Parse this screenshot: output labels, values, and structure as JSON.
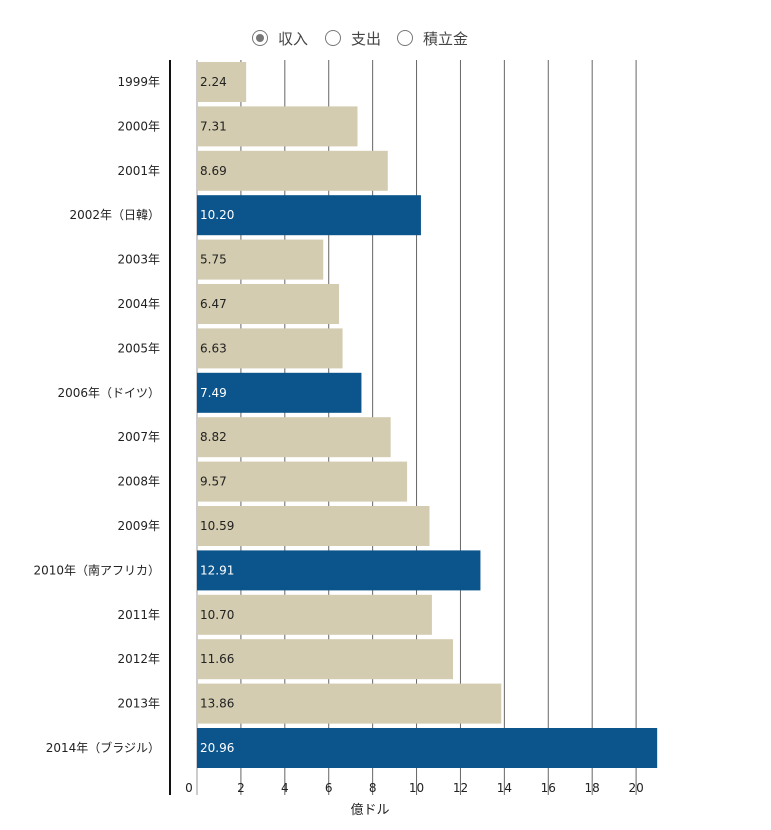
{
  "legend": {
    "options": [
      {
        "label": "収入",
        "selected": true
      },
      {
        "label": "支出",
        "selected": false
      },
      {
        "label": "積立金",
        "selected": false
      }
    ]
  },
  "chart_data": {
    "type": "bar",
    "orientation": "horizontal",
    "title": "",
    "xlabel": "億ドル",
    "ylabel": "",
    "xlim": [
      0,
      22
    ],
    "xticks": [
      0,
      2,
      4,
      6,
      8,
      10,
      12,
      14,
      16,
      18,
      20
    ],
    "grid": true,
    "colors": {
      "default": "#d3ccb0",
      "highlight": "#0b548c",
      "highlight_text": "#ffffff",
      "default_text": "#222222"
    },
    "categories": [
      "1999年",
      "2000年",
      "2001年",
      "2002年（日韓）",
      "2003年",
      "2004年",
      "2005年",
      "2006年（ドイツ）",
      "2007年",
      "2008年",
      "2009年",
      "2010年（南アフリカ）",
      "2011年",
      "2012年",
      "2013年",
      "2014年（ブラジル）"
    ],
    "values": [
      2.24,
      7.31,
      8.69,
      10.2,
      5.75,
      6.47,
      6.63,
      7.49,
      8.82,
      9.57,
      10.59,
      12.91,
      10.7,
      11.66,
      13.86,
      20.96
    ],
    "value_labels": [
      "2.24",
      "7.31",
      "8.69",
      "10.20",
      "5.75",
      "6.47",
      "6.63",
      "7.49",
      "8.82",
      "9.57",
      "10.59",
      "12.91",
      "10.70",
      "11.66",
      "13.86",
      "20.96"
    ],
    "highlighted": [
      false,
      false,
      false,
      true,
      false,
      false,
      false,
      true,
      false,
      false,
      false,
      true,
      false,
      false,
      false,
      true
    ]
  }
}
